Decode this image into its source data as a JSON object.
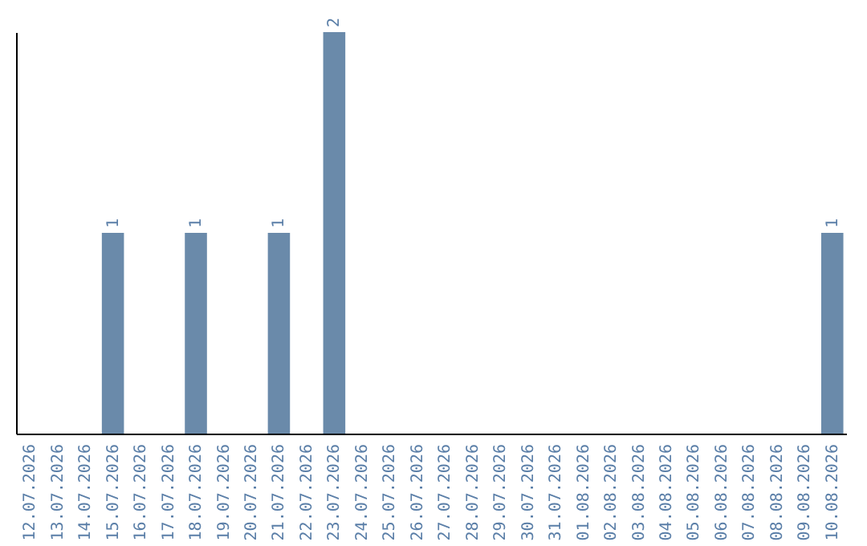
{
  "chart_data": {
    "type": "bar",
    "categories": [
      "12.07.2026",
      "13.07.2026",
      "14.07.2026",
      "15.07.2026",
      "16.07.2026",
      "17.07.2026",
      "18.07.2026",
      "19.07.2026",
      "20.07.2026",
      "21.07.2026",
      "22.07.2026",
      "23.07.2026",
      "24.07.2026",
      "25.07.2026",
      "26.07.2026",
      "27.07.2026",
      "28.07.2026",
      "29.07.2026",
      "30.07.2026",
      "31.07.2026",
      "01.08.2026",
      "02.08.2026",
      "03.08.2026",
      "04.08.2026",
      "05.08.2026",
      "06.08.2026",
      "07.08.2026",
      "08.08.2026",
      "09.08.2026",
      "10.08.2026"
    ],
    "values": [
      0,
      0,
      0,
      1,
      0,
      0,
      1,
      0,
      0,
      1,
      0,
      2,
      0,
      0,
      0,
      0,
      0,
      0,
      0,
      0,
      0,
      0,
      0,
      0,
      0,
      0,
      0,
      0,
      0,
      1
    ],
    "value_labels": [
      null,
      null,
      null,
      "1",
      null,
      null,
      "1",
      null,
      null,
      "1",
      null,
      "2",
      null,
      null,
      null,
      null,
      null,
      null,
      null,
      null,
      null,
      null,
      null,
      null,
      null,
      null,
      null,
      null,
      null,
      "1"
    ],
    "color": "#6a8aaa",
    "grid": false
  }
}
